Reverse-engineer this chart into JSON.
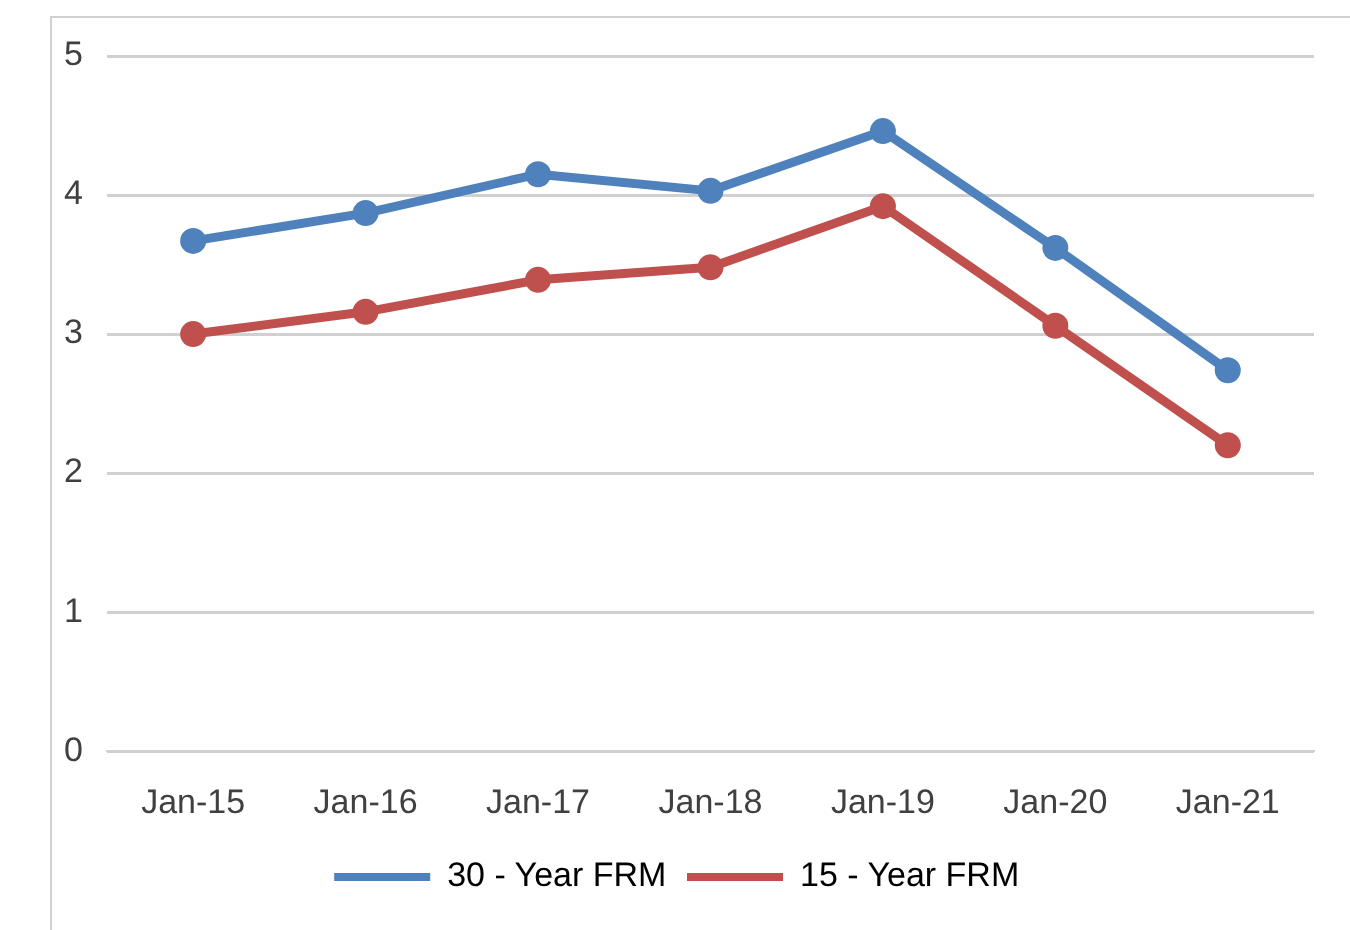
{
  "chart_data": {
    "type": "line",
    "categories": [
      "Jan-15",
      "Jan-16",
      "Jan-17",
      "Jan-18",
      "Jan-19",
      "Jan-20",
      "Jan-21"
    ],
    "series": [
      {
        "name": "30 - Year FRM",
        "color": "#4f81bd",
        "values": [
          3.67,
          3.87,
          4.15,
          4.03,
          4.46,
          3.62,
          2.74
        ]
      },
      {
        "name": "15 - Year FRM",
        "color": "#c0504d",
        "values": [
          3.0,
          3.16,
          3.39,
          3.48,
          3.92,
          3.06,
          2.2
        ]
      }
    ],
    "ylim": [
      0,
      5
    ],
    "yticks": [
      0,
      1,
      2,
      3,
      4,
      5
    ],
    "grid": "y",
    "legend": "bottom",
    "marker": "circle",
    "line_style": "solid"
  }
}
